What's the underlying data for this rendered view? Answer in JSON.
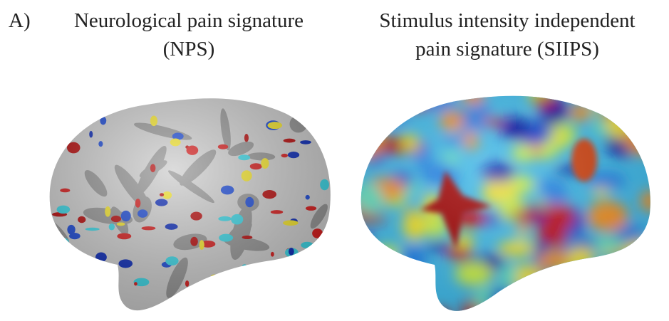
{
  "panel_label": "A)",
  "figures": [
    {
      "title_lines": [
        "Neurological pain signature",
        "(NPS)"
      ]
    },
    {
      "title_lines": [
        "Stimulus intensity independent",
        "pain signature (SIIPS)"
      ]
    }
  ]
}
